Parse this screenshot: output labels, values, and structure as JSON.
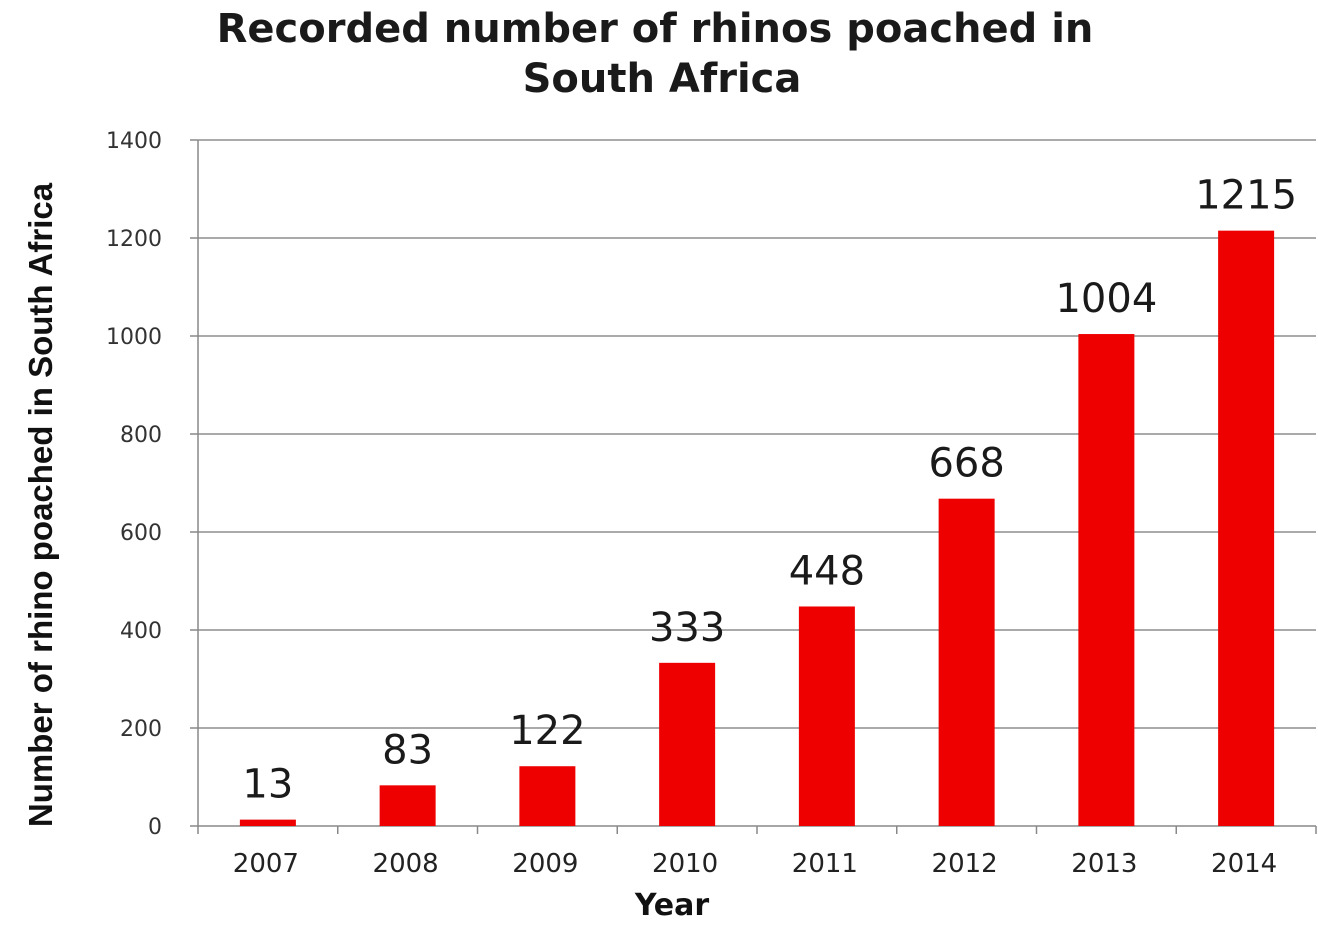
{
  "chart_data": {
    "type": "bar",
    "title_lines": [
      "Recorded number of rhinos poached in",
      "South Africa"
    ],
    "xlabel": "Year",
    "ylabel": "Number of rhino  poached in South Africa",
    "categories": [
      "2007",
      "2008",
      "2009",
      "2010",
      "2011",
      "2012",
      "2013",
      "2014"
    ],
    "values": [
      13,
      83,
      122,
      333,
      448,
      668,
      1004,
      1215
    ],
    "data_labels": [
      "13",
      "83",
      "122",
      "333",
      "448",
      "668",
      "1004",
      "1215"
    ],
    "ylim": [
      0,
      1400
    ],
    "yticks": [
      "0",
      "200",
      "400",
      "600",
      "800",
      "1000",
      "1200",
      "1400"
    ],
    "grid": true,
    "legend": "none",
    "bar_color": "#ee0000"
  }
}
